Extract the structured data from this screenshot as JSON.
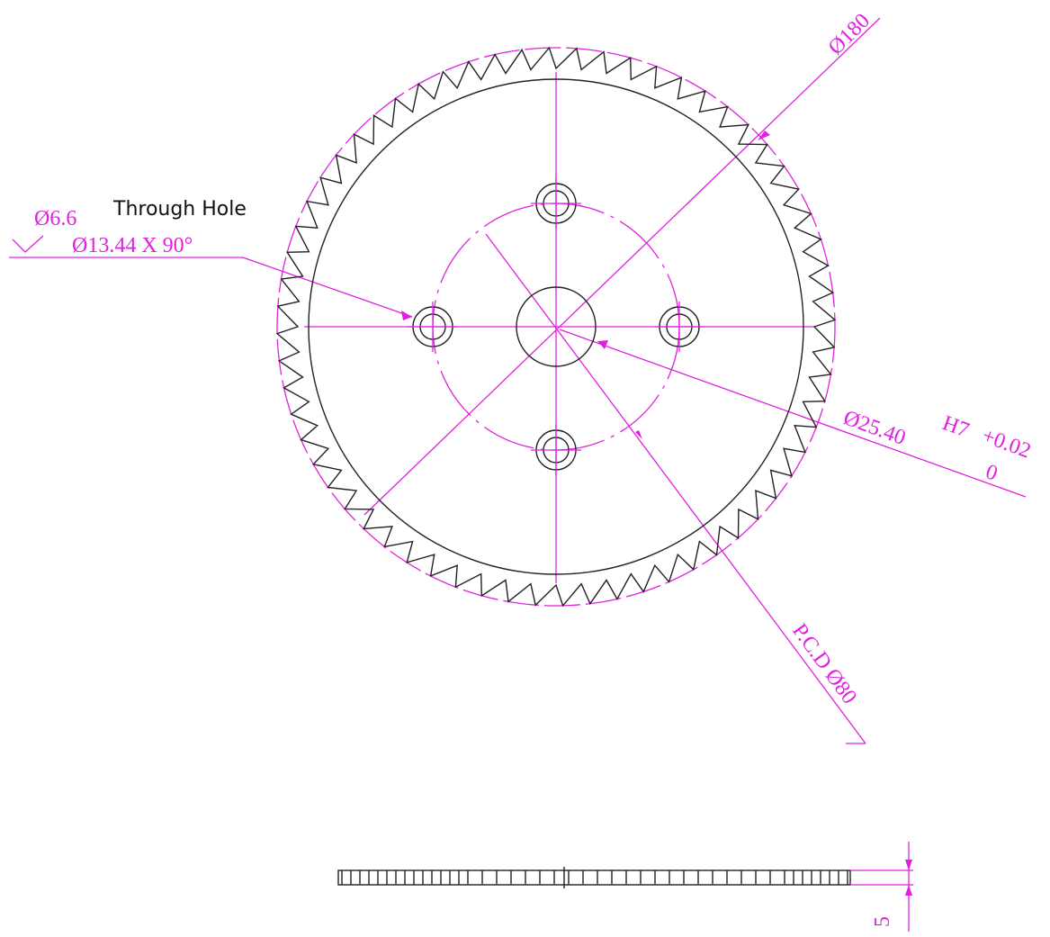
{
  "labels": {
    "outer_diameter": "Ø180",
    "hole_diameter": "Ø6.6",
    "hole_note": "Through Hole",
    "countersink": "Ø13.44 X 90°",
    "bore_diameter": "Ø25.40",
    "bore_tolerance_class": "H7",
    "bore_upper_deviation": "+0.02",
    "bore_lower_deviation": "0",
    "pitch_circle": "P.C.D Ø80",
    "thickness": "5"
  }
}
